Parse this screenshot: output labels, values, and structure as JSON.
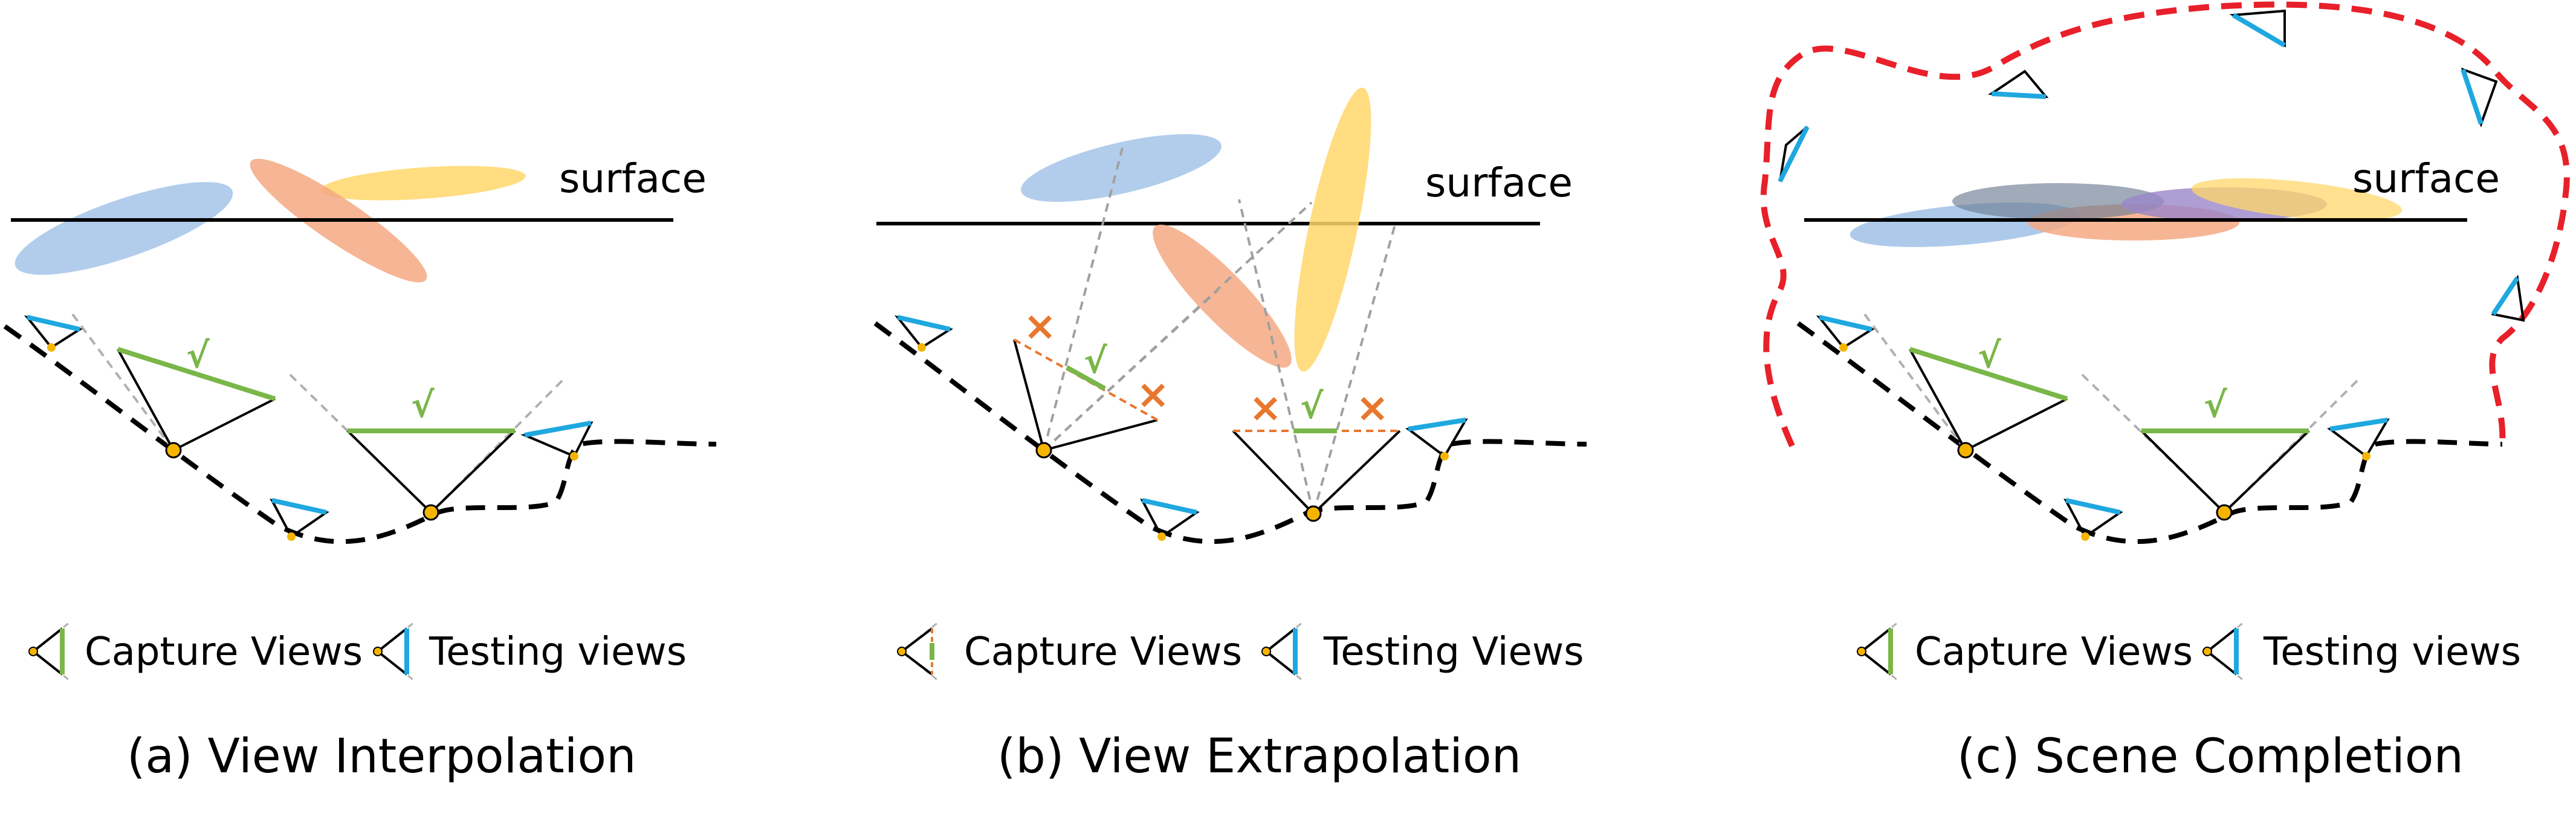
{
  "colors": {
    "blue": "#a5c4e8",
    "orange": "#f4a984",
    "yellow": "#ffd76a",
    "purple": "#9a86c8",
    "gray": "#6d7c94",
    "green": "#7ab648",
    "cyan": "#1fa8e0",
    "red": "#e8202a",
    "marker": "#f5b400",
    "cross": "#e8772e"
  },
  "panels": [
    {
      "surface_label": "surface",
      "legend": {
        "capture": "Capture Views",
        "testing": "Testing views"
      },
      "caption": "(a) View Interpolation",
      "check_marks": [
        "√",
        "√"
      ]
    },
    {
      "surface_label": "surface",
      "legend": {
        "capture": "Capture Views",
        "testing": "Testing Views"
      },
      "caption": "(b) View Extrapolation",
      "check_marks": [
        "√",
        "√"
      ],
      "cross_marks": [
        "×",
        "×",
        "×",
        "×"
      ]
    },
    {
      "surface_label": "surface",
      "legend": {
        "capture": "Capture Views",
        "testing": "Testing views"
      },
      "caption": "(c) Scene Completion",
      "check_marks": [
        "√",
        "√"
      ]
    }
  ]
}
